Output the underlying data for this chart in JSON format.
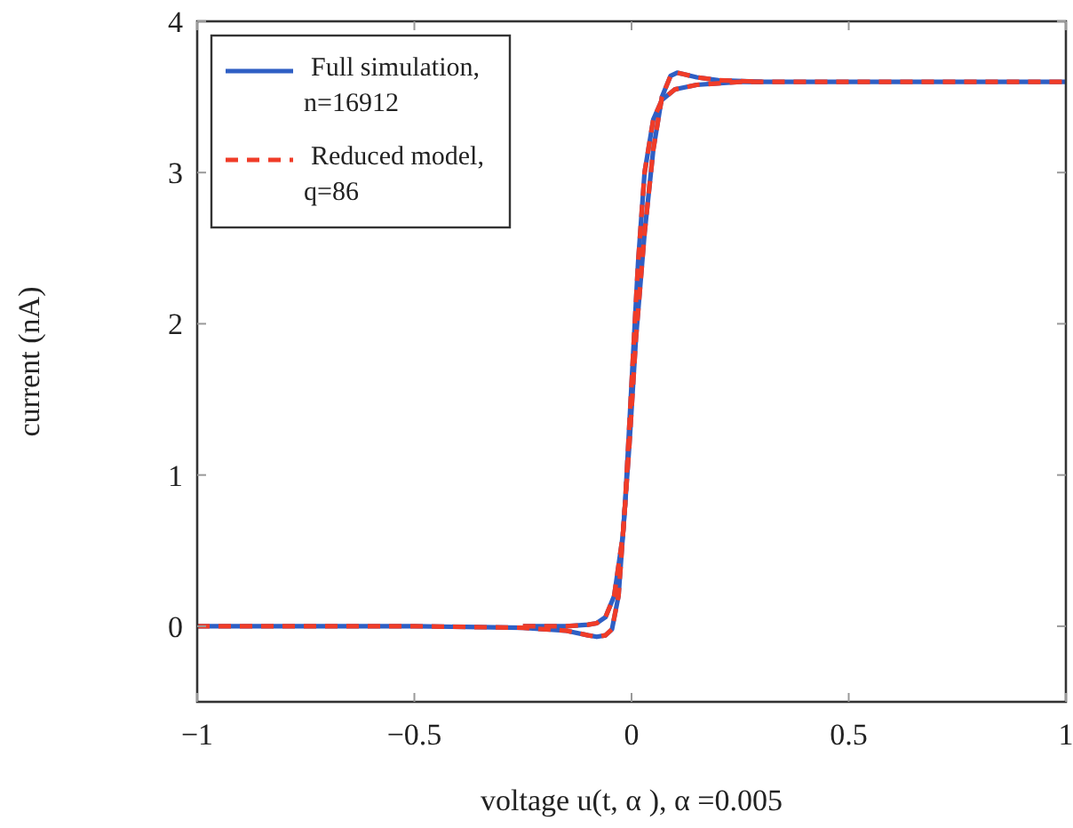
{
  "chart_data": {
    "type": "line",
    "xlabel": "voltage u(t, α ), α =0.005",
    "ylabel": "current (nA)",
    "xlim": [
      -1,
      1
    ],
    "ylim": [
      -0.5,
      4
    ],
    "xticks": [
      {
        "value": -1,
        "label": "−1"
      },
      {
        "value": -0.5,
        "label": "−0.5"
      },
      0,
      0.5,
      1
    ],
    "yticks": [
      0,
      1,
      2,
      3,
      4
    ],
    "grid": false,
    "legend": "top left",
    "series": [
      {
        "name": "Full simulation, n=16912",
        "color": "#2f5fc4",
        "line_style": "solid",
        "x": [
          -1,
          -0.5,
          -0.25,
          -0.15,
          -0.1,
          -0.08,
          -0.06,
          -0.045,
          -0.03,
          -0.015,
          0,
          0.015,
          0.03,
          0.05,
          0.07,
          0.1,
          0.15,
          0.25,
          0.5,
          1
        ],
        "values": [
          0,
          0,
          -0.01,
          -0.03,
          -0.06,
          -0.07,
          -0.06,
          -0.02,
          0.2,
          0.8,
          1.6,
          2.4,
          3.0,
          3.35,
          3.48,
          3.55,
          3.58,
          3.6,
          3.6,
          3.6
        ]
      },
      {
        "color": "#2f5fc4",
        "line_style": "solid",
        "x": [
          -0.25,
          -0.15,
          -0.1,
          -0.08,
          -0.06,
          -0.04,
          -0.02,
          -0.005,
          0.01,
          0.03,
          0.05,
          0.07,
          0.09,
          0.105,
          0.12,
          0.15,
          0.2,
          0.3
        ],
        "values": [
          0,
          0,
          0.01,
          0.02,
          0.06,
          0.2,
          0.6,
          1.2,
          1.9,
          2.6,
          3.15,
          3.5,
          3.64,
          3.66,
          3.65,
          3.63,
          3.61,
          3.6
        ]
      },
      {
        "name": "Reduced model, q=86",
        "color": "#f03c28",
        "line_style": "dashed",
        "x": [
          -1,
          -0.5,
          -0.25,
          -0.15,
          -0.1,
          -0.08,
          -0.06,
          -0.045,
          -0.03,
          -0.015,
          0,
          0.015,
          0.03,
          0.05,
          0.07,
          0.1,
          0.15,
          0.25,
          0.5,
          1
        ],
        "values": [
          0,
          0,
          -0.01,
          -0.03,
          -0.06,
          -0.07,
          -0.06,
          -0.02,
          0.2,
          0.8,
          1.6,
          2.4,
          3.0,
          3.35,
          3.48,
          3.55,
          3.58,
          3.6,
          3.6,
          3.6
        ]
      },
      {
        "color": "#f03c28",
        "line_style": "dashed",
        "x": [
          -0.25,
          -0.15,
          -0.1,
          -0.08,
          -0.06,
          -0.04,
          -0.02,
          -0.005,
          0.01,
          0.03,
          0.05,
          0.07,
          0.09,
          0.105,
          0.12,
          0.15,
          0.2,
          0.3
        ],
        "values": [
          0,
          0,
          0.01,
          0.02,
          0.06,
          0.2,
          0.6,
          1.2,
          1.9,
          2.6,
          3.15,
          3.5,
          3.64,
          3.66,
          3.65,
          3.63,
          3.61,
          3.6
        ]
      }
    ]
  }
}
